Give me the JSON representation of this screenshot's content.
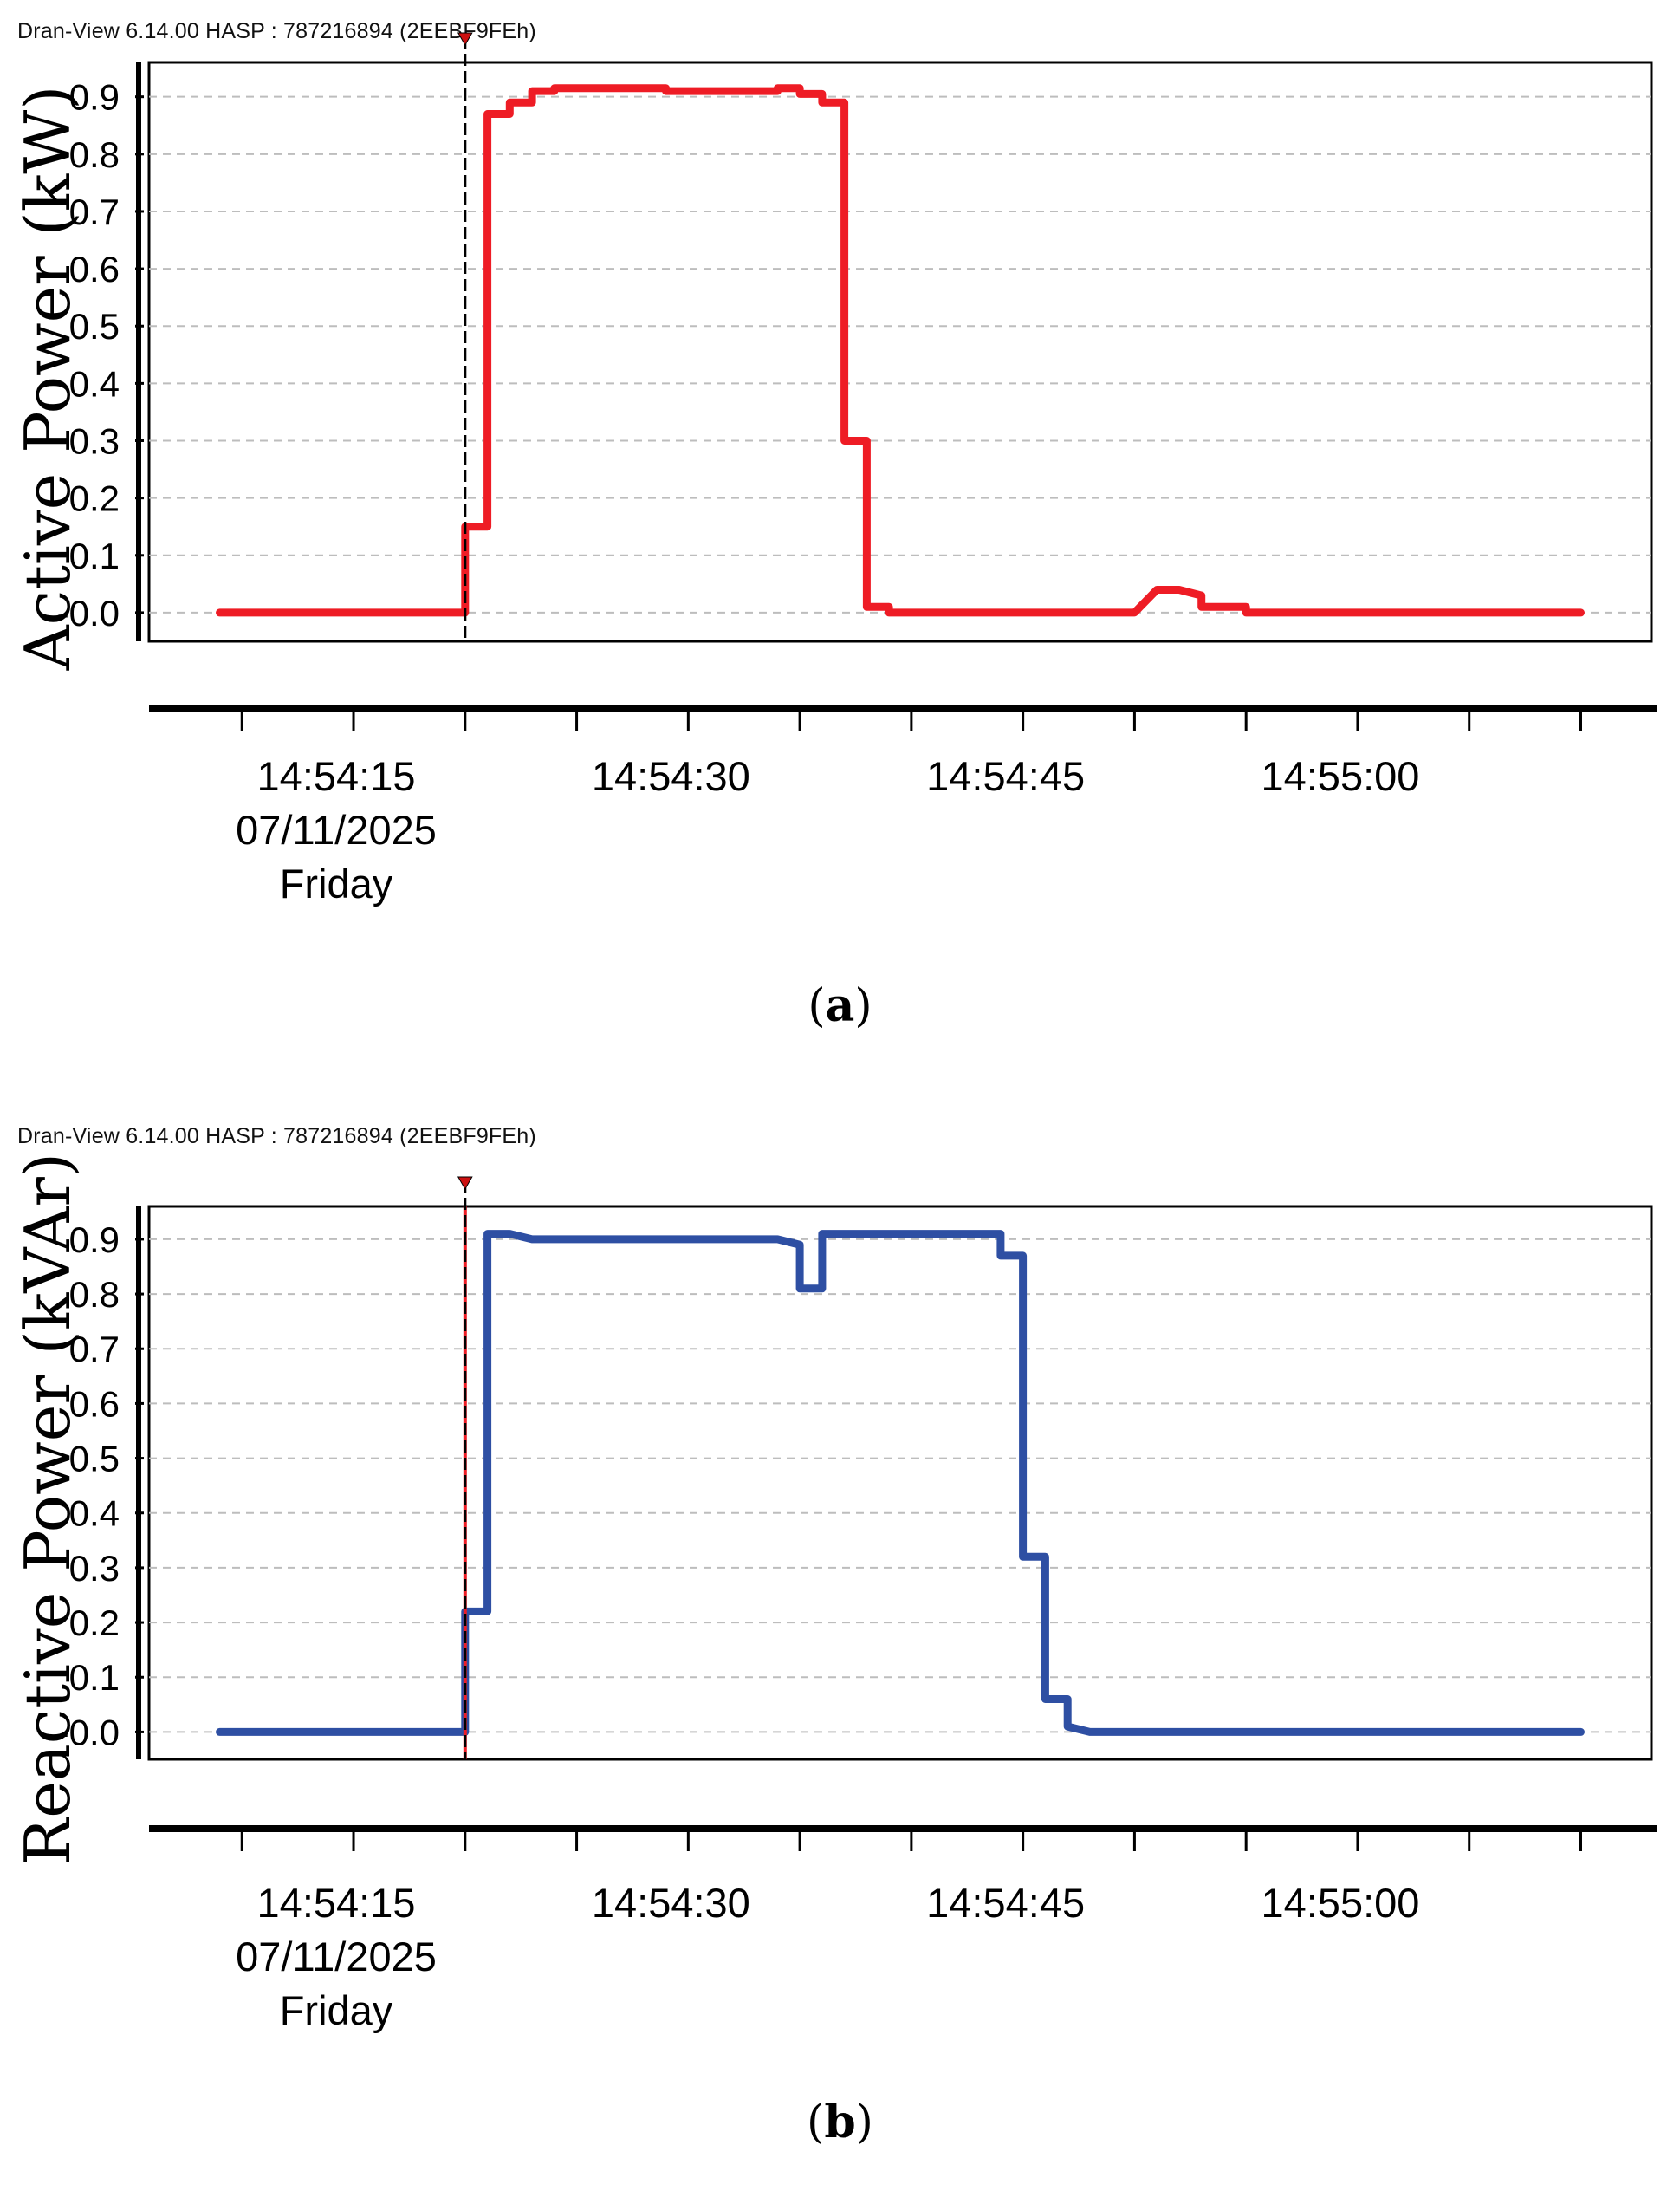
{
  "colors": {
    "series_a": "#ee1c25",
    "series_b": "#2e4fa3",
    "grid": "#bdbdbd",
    "cursor": "#000000"
  },
  "panels": [
    {
      "app_title": "Dran-View 6.14.00 HASP : 787216894 (2EEBF9FEh)",
      "caption_letter": "a"
    },
    {
      "app_title": "Dran-View 6.14.00 HASP : 787216894 (2EEBF9FEh)",
      "caption_letter": "b"
    }
  ],
  "chart_data": [
    {
      "type": "line",
      "ylabel": "Active Power (kW)",
      "xlabel": "",
      "ylim": [
        -0.05,
        0.96
      ],
      "yticks": [
        -0.0,
        0.1,
        0.2,
        0.3,
        0.4,
        0.5,
        0.6,
        0.7,
        0.8,
        0.9
      ],
      "ytick_labels": [
        "-0.0",
        "0.1",
        "0.2",
        "0.3",
        "0.4",
        "0.5",
        "0.6",
        "0.7",
        "0.8",
        "0.9"
      ],
      "xlim": [
        "14:54:07",
        "14:55:12"
      ],
      "xticks": [
        {
          "time": "14:54:15",
          "lines": [
            "14:54:15",
            "07/11/2025",
            "Friday"
          ]
        },
        {
          "time": "14:54:30",
          "lines": [
            "14:54:30"
          ]
        },
        {
          "time": "14:54:45",
          "lines": [
            "14:54:45"
          ]
        },
        {
          "time": "14:55:00",
          "lines": [
            "14:55:00"
          ]
        }
      ],
      "cursor_time": "14:54:20",
      "grid": true,
      "series": [
        {
          "color": "#ee1c25",
          "x": [
            "14:54:09",
            "14:54:20",
            "14:54:20",
            "14:54:21",
            "14:54:21",
            "14:54:22",
            "14:54:22",
            "14:54:23",
            "14:54:23",
            "14:54:24",
            "14:54:24",
            "14:54:29",
            "14:54:29",
            "14:54:34",
            "14:54:34",
            "14:54:35",
            "14:54:35",
            "14:54:36",
            "14:54:36",
            "14:54:37",
            "14:54:37",
            "14:54:38",
            "14:54:38",
            "14:54:39",
            "14:54:39",
            "14:54:50",
            "14:54:51",
            "14:54:52",
            "14:54:53",
            "14:54:53",
            "14:54:55",
            "14:54:55",
            "14:55:10"
          ],
          "y": [
            0.0,
            0.0,
            0.15,
            0.15,
            0.87,
            0.87,
            0.89,
            0.89,
            0.91,
            0.91,
            0.915,
            0.915,
            0.91,
            0.91,
            0.915,
            0.915,
            0.905,
            0.905,
            0.89,
            0.89,
            0.3,
            0.3,
            0.01,
            0.01,
            0.0,
            0.0,
            0.04,
            0.04,
            0.03,
            0.01,
            0.01,
            0.0,
            0.0
          ]
        }
      ]
    },
    {
      "type": "line",
      "ylabel": "Reactive Power (kVAr)",
      "xlabel": "",
      "ylim": [
        -0.05,
        0.96
      ],
      "yticks": [
        -0.0,
        0.1,
        0.2,
        0.3,
        0.4,
        0.5,
        0.6,
        0.7,
        0.8,
        0.9
      ],
      "ytick_labels": [
        "-0.0",
        "0.1",
        "0.2",
        "0.3",
        "0.4",
        "0.5",
        "0.6",
        "0.7",
        "0.8",
        "0.9"
      ],
      "xlim": [
        "14:54:07",
        "14:55:12"
      ],
      "xticks": [
        {
          "time": "14:54:15",
          "lines": [
            "14:54:15",
            "07/11/2025",
            "Friday"
          ]
        },
        {
          "time": "14:54:30",
          "lines": [
            "14:54:30"
          ]
        },
        {
          "time": "14:54:45",
          "lines": [
            "14:54:45"
          ]
        },
        {
          "time": "14:55:00",
          "lines": [
            "14:55:00"
          ]
        }
      ],
      "cursor_time": "14:54:20",
      "grid": true,
      "series": [
        {
          "color": "#2e4fa3",
          "x": [
            "14:54:09",
            "14:54:20",
            "14:54:20",
            "14:54:21",
            "14:54:21",
            "14:54:22",
            "14:54:23",
            "14:54:24",
            "14:54:34",
            "14:54:35",
            "14:54:35",
            "14:54:36",
            "14:54:36",
            "14:54:44",
            "14:54:44",
            "14:54:45",
            "14:54:45",
            "14:54:46",
            "14:54:46",
            "14:54:47",
            "14:54:47",
            "14:54:48",
            "14:55:10"
          ],
          "y": [
            0.0,
            0.0,
            0.22,
            0.22,
            0.91,
            0.91,
            0.9,
            0.9,
            0.9,
            0.89,
            0.81,
            0.81,
            0.91,
            0.91,
            0.87,
            0.87,
            0.32,
            0.32,
            0.06,
            0.06,
            0.01,
            0.0,
            0.0
          ]
        }
      ]
    }
  ]
}
